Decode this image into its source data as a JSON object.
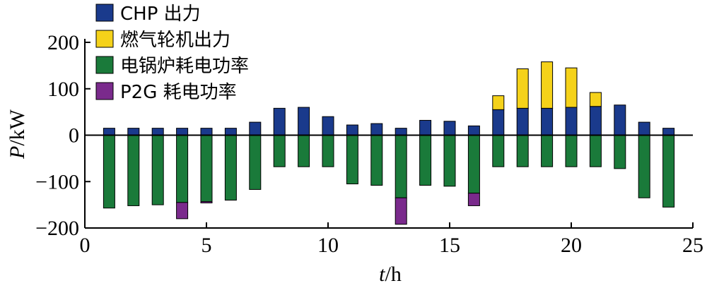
{
  "chart_data": {
    "type": "bar",
    "stacked": true,
    "xlabel": "t/h",
    "xlabel_italic": "t",
    "xlabel_unit": "/h",
    "ylabel": "P/kW",
    "ylabel_italic": "P",
    "ylabel_unit": "/kW",
    "xlim": [
      0,
      25
    ],
    "ylim": [
      -200,
      200
    ],
    "xticks": [
      0,
      5,
      10,
      15,
      20,
      25
    ],
    "xtick_labels": [
      "0",
      "5",
      "10",
      "15",
      "20",
      "25"
    ],
    "yticks": [
      -200,
      -100,
      0,
      100,
      200
    ],
    "ytick_labels": [
      "−200",
      "−100",
      "0",
      "100",
      "200"
    ],
    "grid": false,
    "legend_position": "top-left",
    "x": [
      1,
      2,
      3,
      4,
      5,
      6,
      7,
      8,
      9,
      10,
      11,
      12,
      13,
      14,
      15,
      16,
      17,
      18,
      19,
      20,
      21,
      22,
      23,
      24
    ],
    "series": [
      {
        "name": "CHP 出力",
        "color": "#1a3a8c",
        "values": [
          15,
          15,
          15,
          15,
          15,
          15,
          28,
          58,
          60,
          40,
          22,
          25,
          15,
          32,
          30,
          20,
          55,
          58,
          58,
          60,
          62,
          65,
          28,
          15
        ]
      },
      {
        "name": "燃气轮机出力",
        "color": "#f5d21a",
        "values": [
          0,
          0,
          0,
          0,
          0,
          0,
          0,
          0,
          0,
          0,
          0,
          0,
          0,
          0,
          0,
          0,
          30,
          85,
          100,
          85,
          30,
          0,
          0,
          0
        ]
      },
      {
        "name": "电锅炉耗电功率",
        "color": "#1a7a3a",
        "values": [
          -157,
          -152,
          -150,
          -145,
          -143,
          -140,
          -117,
          -68,
          -68,
          -68,
          -105,
          -108,
          -135,
          -108,
          -110,
          -125,
          -68,
          -68,
          -68,
          -68,
          -68,
          -72,
          -135,
          -155
        ]
      },
      {
        "name": "P2G 耗电功率",
        "color": "#7a2a8c",
        "values": [
          0,
          0,
          0,
          -35,
          -3,
          0,
          0,
          0,
          0,
          0,
          0,
          0,
          -57,
          0,
          0,
          -27,
          0,
          0,
          0,
          0,
          0,
          0,
          0,
          0
        ]
      }
    ]
  }
}
